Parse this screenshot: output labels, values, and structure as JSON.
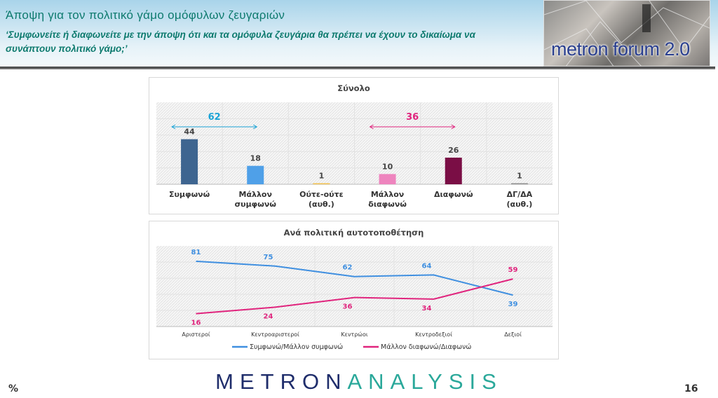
{
  "header": {
    "title": "Άποψη για τον πολιτικό γάμο ομόφυλων ζευγαριών",
    "subtitle": "‘Συμφωνείτε ή διαφωνείτε με την άποψη ότι και τα ομόφυλα ζευγάρια θα πρέπει να έχουν το δικαίωμα να συνάπτουν πολιτικό γάμο;’",
    "logo_text": "metron forum 2.0"
  },
  "footer": {
    "unit": "%",
    "brand_a": "METRON",
    "brand_b": "ANALYSIS",
    "page": "16"
  },
  "chart_data": [
    {
      "type": "bar",
      "title": "Σύνολο",
      "categories": [
        "Συμφωνώ",
        "Μάλλον συμφωνώ",
        "Ούτε-ούτε (αυθ.)",
        "Μάλλον διαφωνώ",
        "Διαφωνώ",
        "ΔΓ/ΔΑ (αυθ.)"
      ],
      "values": [
        44,
        18,
        1,
        10,
        26,
        1
      ],
      "colors": [
        "#3e6590",
        "#4fa0e8",
        "#f2c04a",
        "#ee84be",
        "#7a0e45",
        "#8c8c8c"
      ],
      "annotations": [
        {
          "label": "62",
          "color": "#1aa3d6",
          "from": 0,
          "to": 1
        },
        {
          "label": "36",
          "color": "#e0247d",
          "from": 3,
          "to": 4
        }
      ],
      "ylim": [
        0,
        80
      ]
    },
    {
      "type": "line",
      "title": "Ανά πολιτική αυτοτοποθέτηση",
      "categories": [
        "Αριστεροί",
        "Κεντροαριστεροί",
        "Κεντρώοι",
        "Κεντροδεξιοί",
        "Δεξιοί"
      ],
      "ylim": [
        0,
        100
      ],
      "legend": "bottom",
      "series": [
        {
          "name": "Συμφωνώ/Μάλλον συμφωνώ",
          "color": "#3f8fe0",
          "values": [
            81,
            75,
            62,
            64,
            39
          ]
        },
        {
          "name": "Μάλλον διαφωνώ/Διαφωνώ",
          "color": "#e0247d",
          "values": [
            16,
            24,
            36,
            34,
            59
          ]
        }
      ]
    }
  ]
}
